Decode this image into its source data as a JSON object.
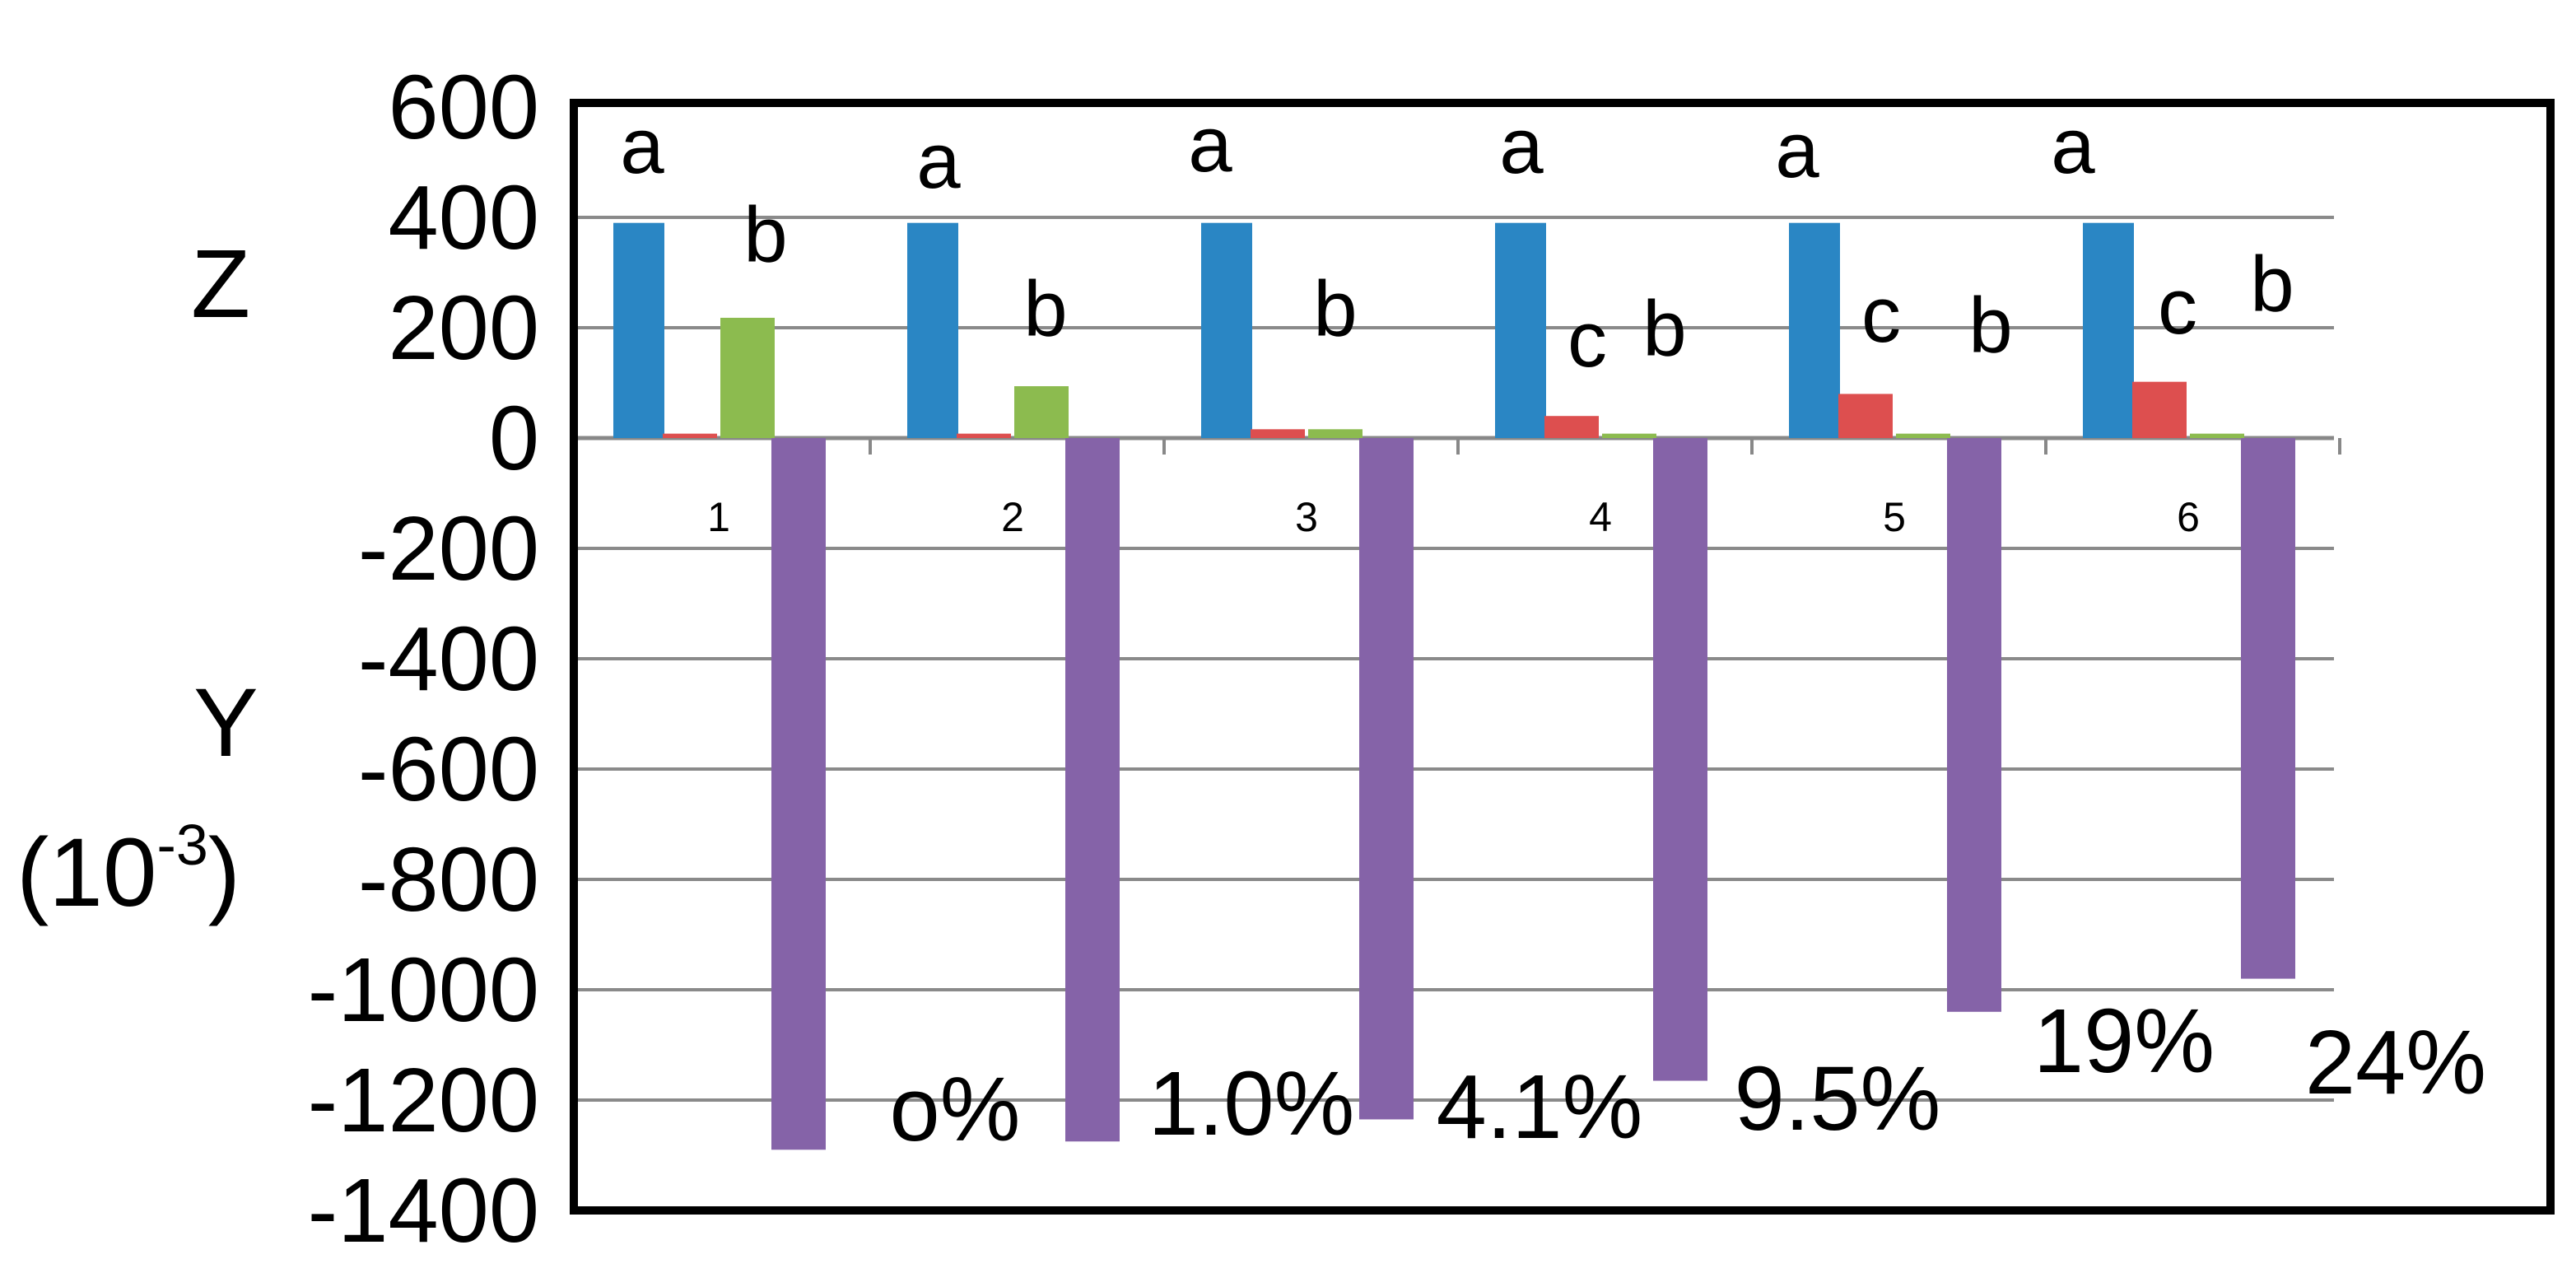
{
  "chart_data": {
    "type": "bar",
    "title": "",
    "ylabel_top": "Z",
    "ylabel_bottom": "Y",
    "ylabel_unit_base": "(10",
    "ylabel_unit_exp": "-3",
    "ylabel_unit_close": ")",
    "ylim": [
      -1400,
      600
    ],
    "yticks": [
      "600",
      "400",
      "200",
      "0",
      "-200",
      "-400",
      "-600",
      "-800",
      "-1000",
      "-1200",
      "-1400"
    ],
    "ytick_values": [
      600,
      400,
      200,
      0,
      -200,
      -400,
      -600,
      -800,
      -1000,
      -1200,
      -1400
    ],
    "grid": "horizontal",
    "legend": "none",
    "categories": [
      "1",
      "2",
      "3",
      "4",
      "5",
      "6"
    ],
    "series": [
      {
        "color": "#2a86c4",
        "values": [
          390,
          390,
          390,
          390,
          390,
          390
        ]
      },
      {
        "color": "#dd4f4f",
        "values": [
          8,
          8,
          16,
          40,
          80,
          102
        ]
      },
      {
        "color": "#8cbb4f",
        "values": [
          218,
          94,
          16,
          8,
          8,
          8
        ]
      },
      {
        "color": "#8563a8",
        "values": [
          -1290,
          -1275,
          -1235,
          -1165,
          -1040,
          -980
        ]
      }
    ],
    "significance": {
      "series1": [
        "a",
        "a",
        "a",
        "a",
        "a",
        "a"
      ],
      "series2": [
        "",
        "",
        "",
        "c",
        "c",
        "c"
      ],
      "series3": [
        "b",
        "b",
        "b",
        "b",
        "b",
        "b"
      ]
    },
    "annotations": [
      "o%",
      "1.0%",
      "4.1%",
      "9.5%",
      "19%",
      "24%"
    ]
  }
}
